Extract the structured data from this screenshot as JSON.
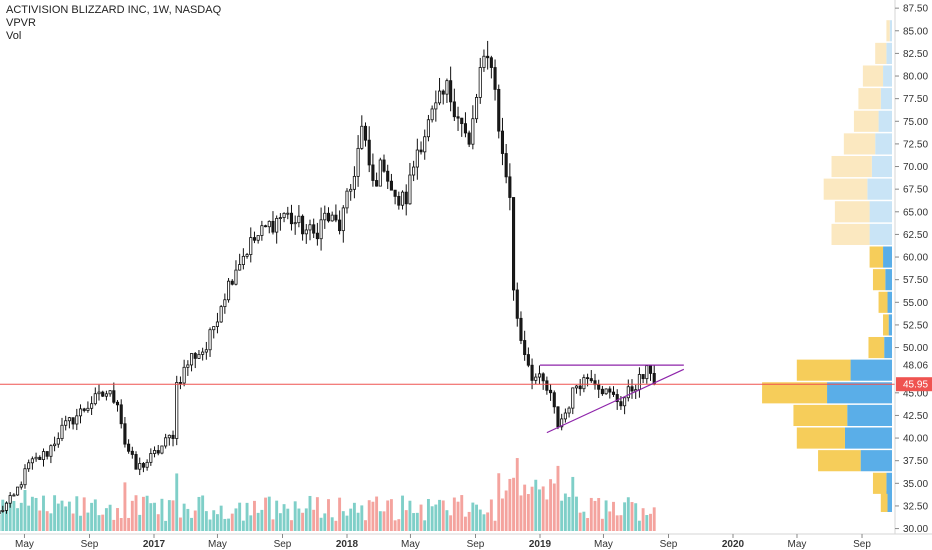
{
  "legend": {
    "symbol_line": "ACTIVISION BLIZZARD INC, 1W, NASDAQ",
    "indicator_1": "VPVR",
    "indicator_2": "Vol"
  },
  "colors": {
    "up": "#4a4a4a",
    "down": "#1a1a1a",
    "vol_up": "#7fcfc8",
    "vol_down": "#f4a39e",
    "vp_up_strong": "#5aaee8",
    "vp_down_strong": "#f6cd5a",
    "vp_up_light": "#c9e4f6",
    "vp_down_light": "#fbe8c0",
    "purple": "#8e24aa",
    "red_line": "#ef5350",
    "badge": "#ef5350"
  },
  "chart_data": {
    "type": "candlestick",
    "title": "ACTIVISION BLIZZARD INC, 1W, NASDAQ",
    "y_axis": {
      "ticks": [
        30.0,
        32.5,
        35.0,
        37.5,
        40.0,
        42.5,
        45.0,
        47.5,
        50.0,
        52.5,
        55.0,
        57.5,
        60.0,
        62.5,
        65.0,
        67.5,
        70.0,
        72.5,
        75.0,
        77.5,
        80.0,
        82.5,
        85.0,
        87.5
      ],
      "tick_labels": [
        "30.00",
        "32.50",
        "35.00",
        "37.50",
        "40.00",
        "42.50",
        "45.00",
        "47.50",
        "50.00",
        "52.50",
        "55.00",
        "57.50",
        "60.00",
        "62.50",
        "65.00",
        "67.50",
        "70.00",
        "72.50",
        "75.00",
        "77.50",
        "80.00",
        "82.50",
        "85.00",
        "87.50"
      ],
      "range": [
        29.4,
        88.4
      ]
    },
    "x_axis": {
      "labels": [
        "May",
        "Sep",
        "2017",
        "May",
        "Sep",
        "2018",
        "May",
        "Sep",
        "2019",
        "May",
        "Sep",
        "2020",
        "May",
        "Sep"
      ],
      "bold": [
        false,
        false,
        true,
        false,
        false,
        true,
        false,
        false,
        true,
        false,
        false,
        true,
        false,
        false
      ],
      "dates": [
        "2016-05-01",
        "2016-09-01",
        "2017-01-01",
        "2017-05-01",
        "2017-09-01",
        "2018-01-01",
        "2018-05-01",
        "2018-09-01",
        "2019-01-01",
        "2019-05-01",
        "2019-09-01",
        "2020-01-01",
        "2020-05-01",
        "2020-09-01"
      ]
    },
    "price_path": [
      [
        "2016-03-14",
        31.8
      ],
      [
        "2016-04-11",
        33.5
      ],
      [
        "2016-05-09",
        37.0
      ],
      [
        "2016-06-13",
        38.4
      ],
      [
        "2016-07-11",
        41.0
      ],
      [
        "2016-08-08",
        42.5
      ],
      [
        "2016-09-05",
        44.0
      ],
      [
        "2016-10-03",
        45.0
      ],
      [
        "2016-10-24",
        44.2
      ],
      [
        "2016-11-07",
        39.5
      ],
      [
        "2016-11-28",
        36.6
      ],
      [
        "2016-12-19",
        37.4
      ],
      [
        "2017-01-09",
        38.6
      ],
      [
        "2017-02-06",
        40.5
      ],
      [
        "2017-02-13",
        46.0
      ],
      [
        "2017-03-13",
        49.0
      ],
      [
        "2017-04-10",
        49.9
      ],
      [
        "2017-05-08",
        55.0
      ],
      [
        "2017-06-05",
        59.0
      ],
      [
        "2017-07-03",
        61.5
      ],
      [
        "2017-08-07",
        63.5
      ],
      [
        "2017-09-04",
        64.8
      ],
      [
        "2017-10-02",
        63.5
      ],
      [
        "2017-10-30",
        62.4
      ],
      [
        "2017-11-20",
        64.5
      ],
      [
        "2017-12-18",
        63.4
      ],
      [
        "2018-01-08",
        67.5
      ],
      [
        "2018-01-29",
        74.0
      ],
      [
        "2018-02-19",
        68.0
      ],
      [
        "2018-03-12",
        70.5
      ],
      [
        "2018-04-02",
        66.0
      ],
      [
        "2018-04-23",
        66.5
      ],
      [
        "2018-05-14",
        72.0
      ],
      [
        "2018-06-11",
        75.5
      ],
      [
        "2018-07-09",
        78.5
      ],
      [
        "2018-07-30",
        76.0
      ],
      [
        "2018-08-20",
        72.0
      ],
      [
        "2018-09-10",
        80.5
      ],
      [
        "2018-10-01",
        82.0
      ],
      [
        "2018-10-22",
        71.0
      ],
      [
        "2018-11-05",
        67.0
      ],
      [
        "2018-11-12",
        56.0
      ],
      [
        "2018-11-26",
        51.0
      ],
      [
        "2018-12-17",
        47.0
      ],
      [
        "2019-01-07",
        46.0
      ],
      [
        "2019-01-21",
        44.5
      ],
      [
        "2019-02-04",
        41.5
      ],
      [
        "2019-02-18",
        42.8
      ],
      [
        "2019-03-11",
        46.0
      ],
      [
        "2019-04-08",
        47.0
      ],
      [
        "2019-05-06",
        45.0
      ],
      [
        "2019-06-03",
        44.0
      ],
      [
        "2019-07-01",
        46.0
      ],
      [
        "2019-07-22",
        47.2
      ],
      [
        "2019-08-05",
        48.0
      ]
    ],
    "last_price": 45.95,
    "last_price_label": "45.95",
    "resistance_level": 48.06,
    "resistance_label": "48.06",
    "resistance_range": [
      "2019-01-01",
      "2019-09-30"
    ],
    "support_trendline": [
      [
        "2019-01-14",
        40.6
      ],
      [
        "2019-09-30",
        47.6
      ]
    ],
    "volume_profile": {
      "bins": [
        {
          "price": 33.0,
          "up": 4,
          "down": 6
        },
        {
          "price": 35.0,
          "up": 5,
          "down": 12
        },
        {
          "price": 37.5,
          "up": 28,
          "down": 38
        },
        {
          "price": 40.0,
          "up": 42,
          "down": 43
        },
        {
          "price": 42.5,
          "up": 40,
          "down": 48
        },
        {
          "price": 45.0,
          "up": 58,
          "down": 58
        },
        {
          "price": 47.5,
          "up": 37,
          "down": 48
        },
        {
          "price": 50.0,
          "up": 7,
          "down": 14
        },
        {
          "price": 52.5,
          "up": 3,
          "down": 5
        },
        {
          "price": 55.0,
          "up": 4,
          "down": 8
        },
        {
          "price": 57.5,
          "up": 6,
          "down": 11
        },
        {
          "price": 60.0,
          "up": 8,
          "down": 12
        },
        {
          "price": 62.5,
          "up": 20,
          "down": 34
        },
        {
          "price": 65.0,
          "up": 20,
          "down": 31
        },
        {
          "price": 67.5,
          "up": 22,
          "down": 39
        },
        {
          "price": 70.0,
          "up": 18,
          "down": 36
        },
        {
          "price": 72.5,
          "up": 15,
          "down": 28
        },
        {
          "price": 75.0,
          "up": 12,
          "down": 22
        },
        {
          "price": 77.5,
          "up": 10,
          "down": 20
        },
        {
          "price": 80.0,
          "up": 8,
          "down": 18
        },
        {
          "price": 82.5,
          "up": 5,
          "down": 10
        },
        {
          "price": 85.0,
          "up": 2,
          "down": 3
        }
      ],
      "light_above": 60.5
    }
  }
}
